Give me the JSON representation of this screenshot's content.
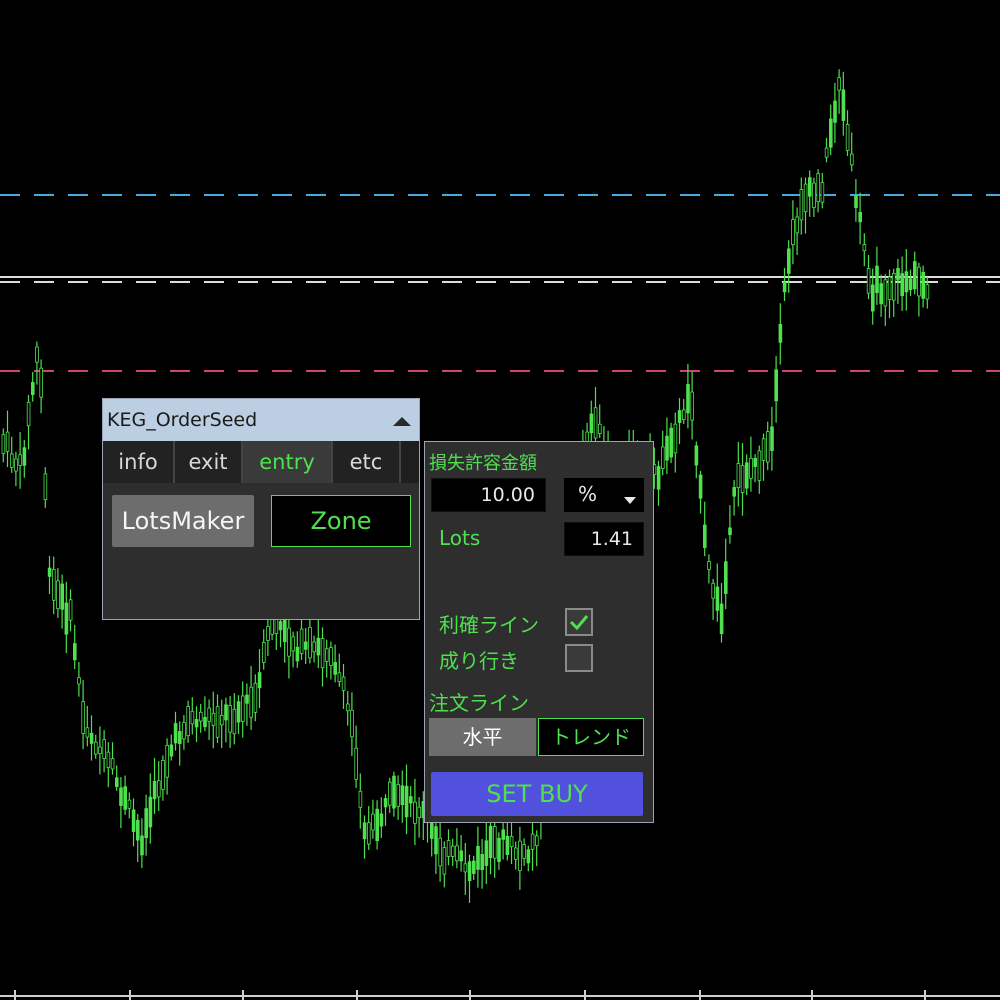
{
  "colors": {
    "background": "#000000",
    "candle": "#4ee04e",
    "line_resistance": "#4aa8e0",
    "line_mid": "#dcdcdc",
    "line_support": "#d0407a",
    "accent_green": "#4ee04e",
    "buy_button": "#5151dd"
  },
  "panel": {
    "title": "KEG_OrderSeed",
    "collapse_icon": "triangle-up-icon",
    "tabs": [
      {
        "label": "info",
        "active": false
      },
      {
        "label": "exit",
        "active": false
      },
      {
        "label": "entry",
        "active": true
      },
      {
        "label": "etc",
        "active": false
      }
    ],
    "lots_maker_label": "LotsMaker",
    "zone_label": "Zone"
  },
  "entry": {
    "risk_label": "損失許容金額",
    "risk_value": "10.00",
    "risk_unit": "%",
    "lots_label": "Lots",
    "lots_value": "1.41",
    "take_profit_label": "利確ライン",
    "take_profit_checked": true,
    "market_label": "成り行き",
    "market_checked": false,
    "order_line_label": "注文ライン",
    "horizontal_label": "水平",
    "trend_label": "トレンド",
    "set_buy_label": "SET BUY"
  }
}
